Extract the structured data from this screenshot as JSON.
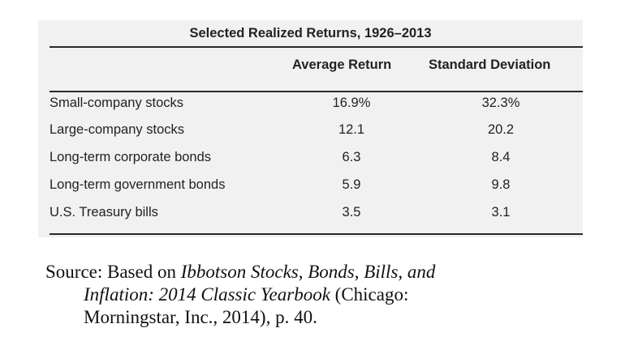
{
  "table": {
    "title": "Selected Realized Returns, 1926–2013",
    "headers": {
      "average_return": "Average Return",
      "standard_deviation": "Standard Deviation"
    },
    "rows": [
      {
        "label": "Small-company stocks",
        "average_return": "16.9%",
        "standard_deviation": "32.3%"
      },
      {
        "label": "Large-company stocks",
        "average_return": "12.1",
        "standard_deviation": "20.2"
      },
      {
        "label": "Long-term corporate bonds",
        "average_return": "6.3",
        "standard_deviation": "8.4"
      },
      {
        "label": "Long-term government bonds",
        "average_return": "5.9",
        "standard_deviation": "9.8"
      },
      {
        "label": "U.S. Treasury bills",
        "average_return": "3.5",
        "standard_deviation": "3.1"
      }
    ]
  },
  "source": {
    "prefix": "Source:  Based on ",
    "title_part1": "Ibbotson Stocks, Bonds, Bills, and",
    "title_part2": "Inflation:  2014 Classic Yearbook",
    "after_title": " (Chicago:",
    "line3": "Morningstar, Inc., 2014), p. 40."
  }
}
